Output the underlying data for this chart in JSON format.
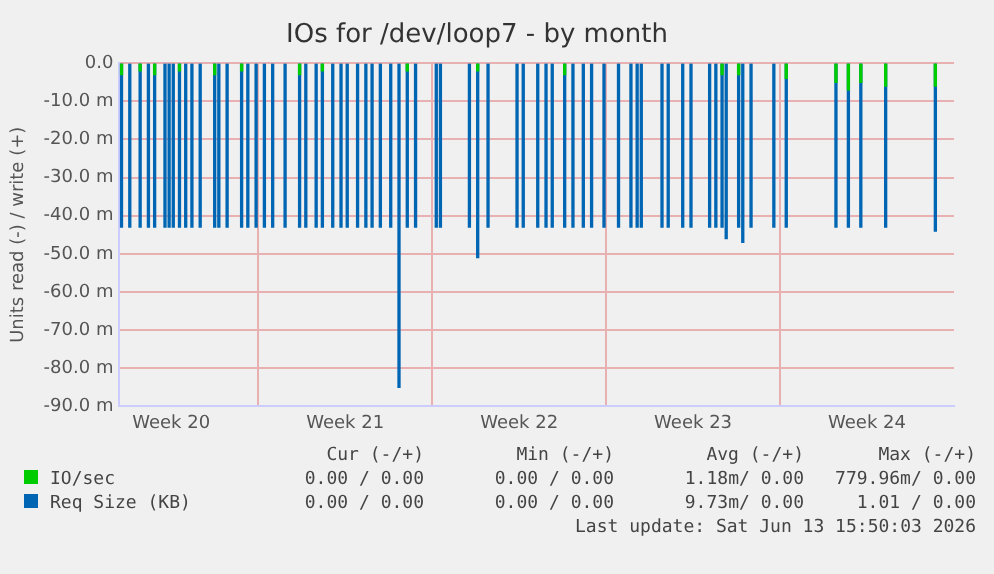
{
  "chart_data": {
    "type": "bar",
    "title": "IOs for /dev/loop7 - by month",
    "ylabel": "Units read (-) / write (+)",
    "xlim": [
      "2026-05-11T10:00",
      "2026-06-14T00:00"
    ],
    "xticks": [
      {
        "value": "2026-05-13T12:00",
        "label": "Week 20"
      },
      {
        "value": "2026-05-17",
        "label": null
      },
      {
        "value": "2026-05-20T12:00",
        "label": "Week 21"
      },
      {
        "value": "2026-05-24",
        "label": null
      },
      {
        "value": "2026-05-27T12:00",
        "label": "Week 22"
      },
      {
        "value": "2026-05-31",
        "label": null
      },
      {
        "value": "2026-06-03T12:00",
        "label": "Week 23"
      },
      {
        "value": "2026-06-07",
        "label": null
      },
      {
        "value": "2026-06-10T12:00",
        "label": "Week 24"
      }
    ],
    "ylim": [
      -90,
      0
    ],
    "yticks": [
      {
        "value": -90,
        "label": "-90.0 m"
      },
      {
        "value": -80,
        "label": "-80.0 m"
      },
      {
        "value": -70,
        "label": "-70.0 m"
      },
      {
        "value": -60,
        "label": "-60.0 m"
      },
      {
        "value": -50,
        "label": "-50.0 m"
      },
      {
        "value": -40,
        "label": "-40.0 m"
      },
      {
        "value": -30,
        "label": "-30.0 m"
      },
      {
        "value": -20,
        "label": "-20.0 m"
      },
      {
        "value": -10,
        "label": "-10.0 m"
      },
      {
        "value": 0,
        "label": "0.0"
      }
    ],
    "grid": true,
    "legend": "bottom",
    "series": [
      {
        "name": "IO/sec",
        "color": "#00cc00",
        "x": [
          "2026-05-11T12:00",
          "2026-05-12T06:00",
          "2026-05-12T20:00",
          "2026-05-13T20:00",
          "2026-05-15T06:00",
          "2026-05-16T08:00",
          "2026-05-18T16:00",
          "2026-05-19T14:00",
          "2026-05-23T00:00",
          "2026-05-25T20:00",
          "2026-05-29T08:00",
          "2026-06-04T16:00",
          "2026-06-05T08:00",
          "2026-06-07T06:00",
          "2026-06-09T06:00",
          "2026-06-09T18:00",
          "2026-06-10T06:00",
          "2026-06-11T06:00",
          "2026-06-13T06:00"
        ],
        "values": [
          -3,
          -2,
          -3,
          -2,
          -3,
          -2,
          -3,
          -2,
          -2,
          -2,
          -3,
          -3,
          -3,
          -4,
          -5,
          -7,
          -5,
          -6,
          -6
        ]
      },
      {
        "name": "Req Size (KB)",
        "color": "#0066b3",
        "x": [
          "2026-05-11T12:00",
          "2026-05-11T20:00",
          "2026-05-12T06:00",
          "2026-05-12T14:00",
          "2026-05-12T20:00",
          "2026-05-13T06:00",
          "2026-05-13T10:00",
          "2026-05-13T14:00",
          "2026-05-13T20:00",
          "2026-05-14T02:00",
          "2026-05-14T08:00",
          "2026-05-14T16:00",
          "2026-05-15T06:00",
          "2026-05-15T10:00",
          "2026-05-15T18:00",
          "2026-05-16T08:00",
          "2026-05-16T14:00",
          "2026-05-16T22:00",
          "2026-05-17T06:00",
          "2026-05-17T14:00",
          "2026-05-18T02:00",
          "2026-05-18T16:00",
          "2026-05-18T22:00",
          "2026-05-19T08:00",
          "2026-05-19T14:00",
          "2026-05-20T00:00",
          "2026-05-20T08:00",
          "2026-05-20T14:00",
          "2026-05-21T00:00",
          "2026-05-21T08:00",
          "2026-05-21T14:00",
          "2026-05-21T22:00",
          "2026-05-22T08:00",
          "2026-05-22T16:00",
          "2026-05-23T00:00",
          "2026-05-23T08:00",
          "2026-05-24T04:00",
          "2026-05-24T08:00",
          "2026-05-25T12:00",
          "2026-05-25T20:00",
          "2026-05-26T06:00",
          "2026-05-27T10:00",
          "2026-05-27T16:00",
          "2026-05-28T06:00",
          "2026-05-28T14:00",
          "2026-05-28T20:00",
          "2026-05-29T08:00",
          "2026-05-29T16:00",
          "2026-05-30T02:00",
          "2026-05-30T10:00",
          "2026-05-30T22:00",
          "2026-05-31T12:00",
          "2026-06-01T00:00",
          "2026-06-01T06:00",
          "2026-06-01T10:00",
          "2026-06-02T06:00",
          "2026-06-02T12:00",
          "2026-06-03T02:00",
          "2026-06-03T10:00",
          "2026-06-04T04:00",
          "2026-06-04T10:00",
          "2026-06-04T16:00",
          "2026-06-04T20:00",
          "2026-06-05T08:00",
          "2026-06-05T12:00",
          "2026-06-05T20:00",
          "2026-06-06T18:00",
          "2026-06-07T06:00",
          "2026-06-09T06:00",
          "2026-06-09T18:00",
          "2026-06-10T06:00",
          "2026-06-11T06:00",
          "2026-06-13T06:00"
        ],
        "values": [
          -43,
          -43,
          -43,
          -43,
          -43,
          -43,
          -43,
          -43,
          -43,
          -43,
          -43,
          -43,
          -43,
          -43,
          -43,
          -43,
          -43,
          -43,
          -43,
          -43,
          -43,
          -43,
          -43,
          -43,
          -43,
          -43,
          -43,
          -43,
          -43,
          -43,
          -43,
          -43,
          -43,
          -85,
          -43,
          -43,
          -43,
          -43,
          -43,
          -51,
          -43,
          -43,
          -43,
          -43,
          -43,
          -43,
          -43,
          -43,
          -43,
          -43,
          -43,
          -43,
          -43,
          -43,
          -43,
          -43,
          -43,
          -43,
          -43,
          -43,
          -43,
          -43,
          -46,
          -43,
          -47,
          -43,
          -43,
          -43,
          -43,
          -43,
          -43,
          -43,
          -44
        ]
      }
    ],
    "annotations": [
      "Cur (-/+)",
      "Min (-/+)",
      "Avg (-/+)",
      "Max (-/+)",
      "0.00 / 0.00",
      "0.00 / 0.00",
      "1.18m/ 0.00",
      "779.96m/ 0.00",
      "0.00 / 0.00",
      "0.00 / 0.00",
      "9.73m/ 0.00",
      "1.01 / 0.00",
      "Last update: Sat Jun 13 15:50:03 2026"
    ]
  }
}
